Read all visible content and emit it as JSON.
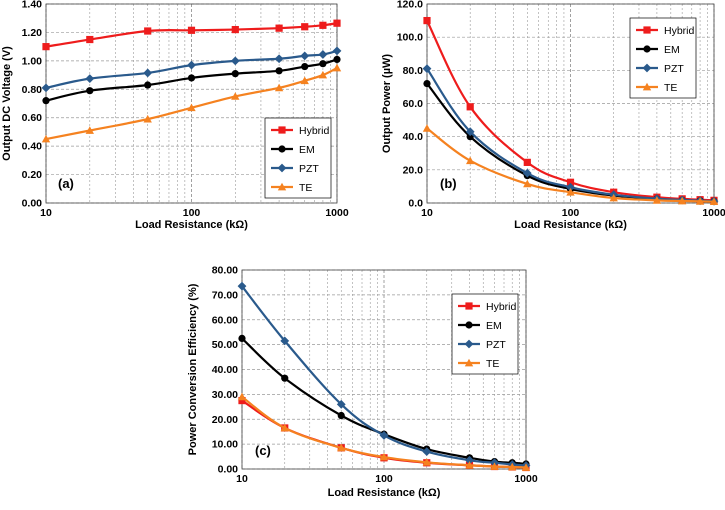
{
  "chart_data": [
    {
      "type": "line",
      "panel_label": "(a)",
      "xlabel": "Load Resistance (kΩ)",
      "ylabel": "Output DC Voltage (V)",
      "xscale": "log",
      "xlim": [
        10,
        1000
      ],
      "ylim": [
        0,
        1.4
      ],
      "xticks": [
        10,
        100,
        1000
      ],
      "xtick_labels": [
        "10",
        "100",
        "1000"
      ],
      "yticks": [
        0,
        0.2,
        0.4,
        0.6,
        0.8,
        1.0,
        1.2,
        1.4
      ],
      "ytick_labels": [
        "0.00",
        "0.20",
        "0.40",
        "0.60",
        "0.80",
        "1.00",
        "1.20",
        "1.40"
      ],
      "grid": true,
      "legend_position": "bottom-right",
      "x": [
        10,
        20,
        50,
        100,
        200,
        400,
        600,
        800,
        1000
      ],
      "series": [
        {
          "name": "Hybrid",
          "color": "#ee1c1c",
          "marker": "square",
          "values": [
            1.1,
            1.15,
            1.21,
            1.215,
            1.22,
            1.23,
            1.24,
            1.25,
            1.265
          ]
        },
        {
          "name": "EM",
          "color": "#000000",
          "marker": "circle",
          "values": [
            0.72,
            0.79,
            0.83,
            0.88,
            0.91,
            0.93,
            0.96,
            0.98,
            1.01
          ]
        },
        {
          "name": "PZT",
          "color": "#2a5a8c",
          "marker": "diamond",
          "values": [
            0.81,
            0.875,
            0.915,
            0.97,
            1.0,
            1.015,
            1.035,
            1.045,
            1.07
          ]
        },
        {
          "name": "TE",
          "color": "#f58220",
          "marker": "triangle",
          "values": [
            0.45,
            0.51,
            0.59,
            0.67,
            0.75,
            0.81,
            0.86,
            0.9,
            0.95
          ]
        }
      ]
    },
    {
      "type": "line",
      "panel_label": "(b)",
      "xlabel": "Load Resistance (kΩ)",
      "ylabel": "Output Power (µW)",
      "xscale": "log",
      "xlim": [
        10,
        1000
      ],
      "ylim": [
        0,
        120
      ],
      "xticks": [
        10,
        100,
        1000
      ],
      "xtick_labels": [
        "10",
        "100",
        "1000"
      ],
      "yticks": [
        0,
        20,
        40,
        60,
        80,
        100,
        120
      ],
      "ytick_labels": [
        "0.0",
        "20.0",
        "40.0",
        "60.0",
        "80.0",
        "100.0",
        "120.0"
      ],
      "grid": true,
      "legend_position": "top-right",
      "x": [
        10,
        20,
        50,
        100,
        200,
        400,
        600,
        800,
        1000
      ],
      "series": [
        {
          "name": "Hybrid",
          "color": "#ee1c1c",
          "marker": "square",
          "values": [
            110.0,
            58.0,
            24.5,
            12.5,
            6.5,
            3.5,
            2.5,
            2.0,
            1.6
          ]
        },
        {
          "name": "EM",
          "color": "#000000",
          "marker": "circle",
          "values": [
            72.0,
            40.0,
            16.5,
            8.5,
            4.5,
            2.4,
            1.6,
            1.3,
            1.0
          ]
        },
        {
          "name": "PZT",
          "color": "#2a5a8c",
          "marker": "diamond",
          "values": [
            81.0,
            43.0,
            18.0,
            9.5,
            5.0,
            2.6,
            1.8,
            1.4,
            1.1
          ]
        },
        {
          "name": "TE",
          "color": "#f58220",
          "marker": "triangle",
          "values": [
            45.0,
            25.5,
            11.5,
            6.5,
            3.0,
            1.6,
            1.2,
            1.0,
            0.8
          ]
        }
      ]
    },
    {
      "type": "line",
      "panel_label": "(c)",
      "xlabel": "Load Resistance (kΩ)",
      "ylabel": "Power Conversion Efficiency (%)",
      "xscale": "log",
      "xlim": [
        10,
        1000
      ],
      "ylim": [
        0,
        80
      ],
      "xticks": [
        10,
        100,
        1000
      ],
      "xtick_labels": [
        "10",
        "100",
        "1000"
      ],
      "yticks": [
        0,
        10,
        20,
        30,
        40,
        50,
        60,
        70,
        80
      ],
      "ytick_labels": [
        "0.00",
        "10.00",
        "20.00",
        "30.00",
        "40.00",
        "50.00",
        "60.00",
        "70.00",
        "80.00"
      ],
      "grid": true,
      "legend_position": "top-right",
      "x": [
        10,
        20,
        50,
        100,
        200,
        400,
        600,
        800,
        1000
      ],
      "series": [
        {
          "name": "Hybrid",
          "color": "#ee1c1c",
          "marker": "square",
          "values": [
            27.5,
            16.5,
            8.5,
            4.5,
            2.5,
            1.5,
            1.0,
            0.8,
            0.6
          ]
        },
        {
          "name": "EM",
          "color": "#000000",
          "marker": "circle",
          "values": [
            52.5,
            36.5,
            21.5,
            14.0,
            8.0,
            4.5,
            3.0,
            2.5,
            2.0
          ]
        },
        {
          "name": "PZT",
          "color": "#2a5a8c",
          "marker": "diamond",
          "values": [
            73.5,
            51.5,
            26.0,
            13.5,
            7.0,
            3.5,
            2.5,
            1.8,
            1.4
          ]
        },
        {
          "name": "TE",
          "color": "#f58220",
          "marker": "triangle",
          "values": [
            29.0,
            16.5,
            8.5,
            4.8,
            2.7,
            1.5,
            1.0,
            0.8,
            0.6
          ]
        }
      ]
    }
  ]
}
